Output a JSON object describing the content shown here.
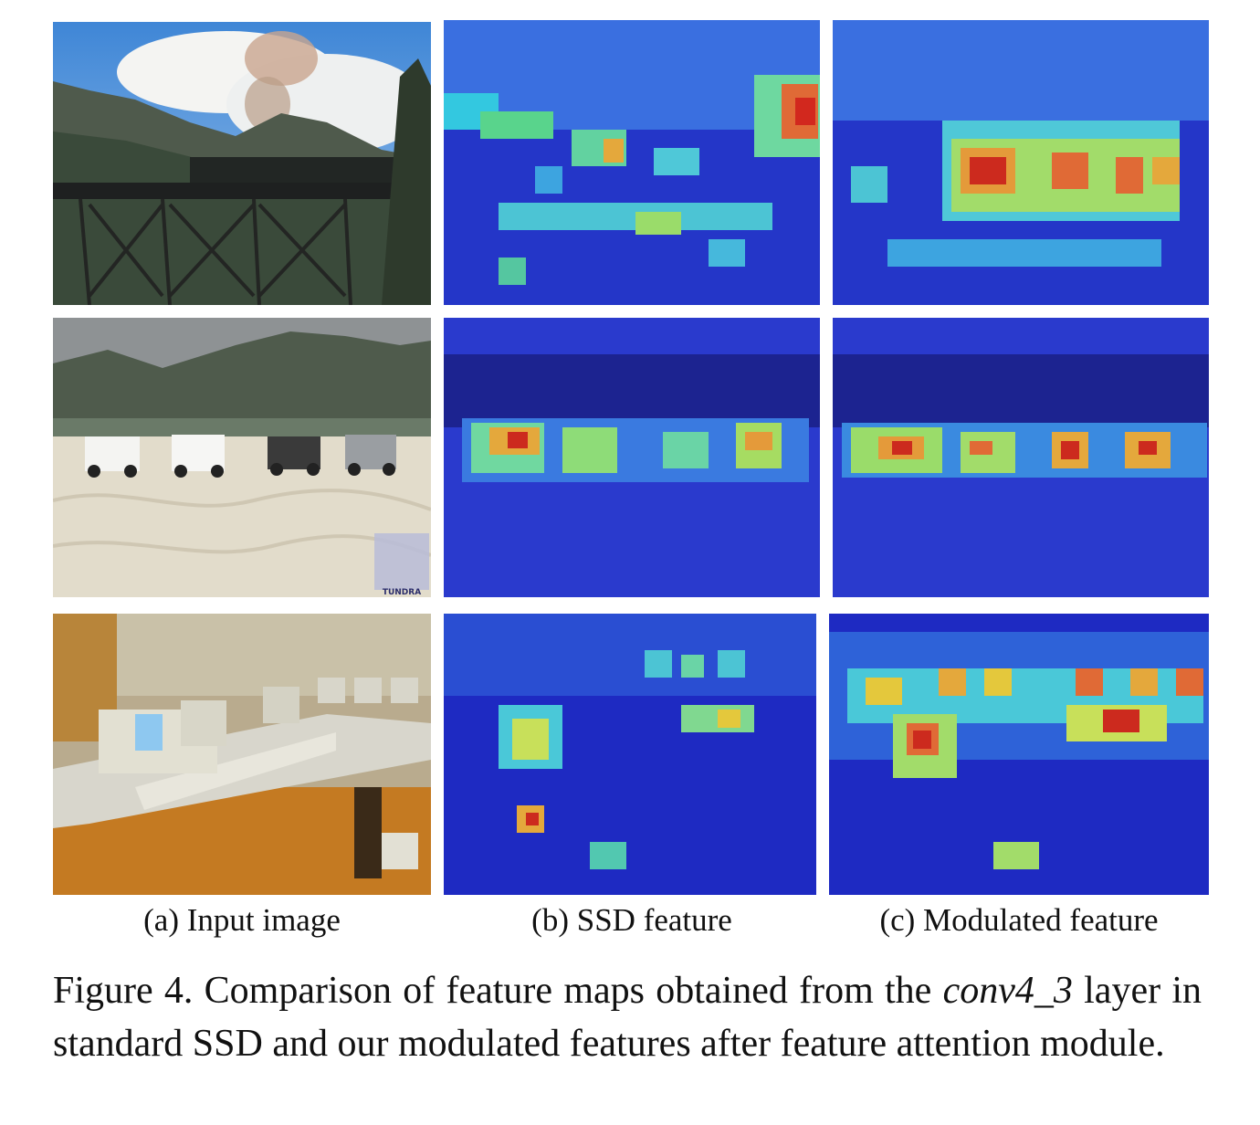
{
  "columns": {
    "a": "(a) Input image",
    "b": "(b) SSD feature",
    "c": "(c) Modulated feature"
  },
  "rows": [
    {
      "name": "train-on-bridge"
    },
    {
      "name": "trucks-on-sand"
    },
    {
      "name": "computer-lab"
    }
  ],
  "watermark": "TUNDRA",
  "caption": {
    "prefix": "Figure 4. Comparison of feature maps obtained from the ",
    "math": "conv4_3",
    "suffix": " layer in standard SSD and our modulated features after feature attention module."
  },
  "colors": {
    "heat_low": "#1c2fd0",
    "heat_mid": "#36d0e0",
    "heat_high": "#e8e23a",
    "heat_peak": "#d8281e"
  }
}
